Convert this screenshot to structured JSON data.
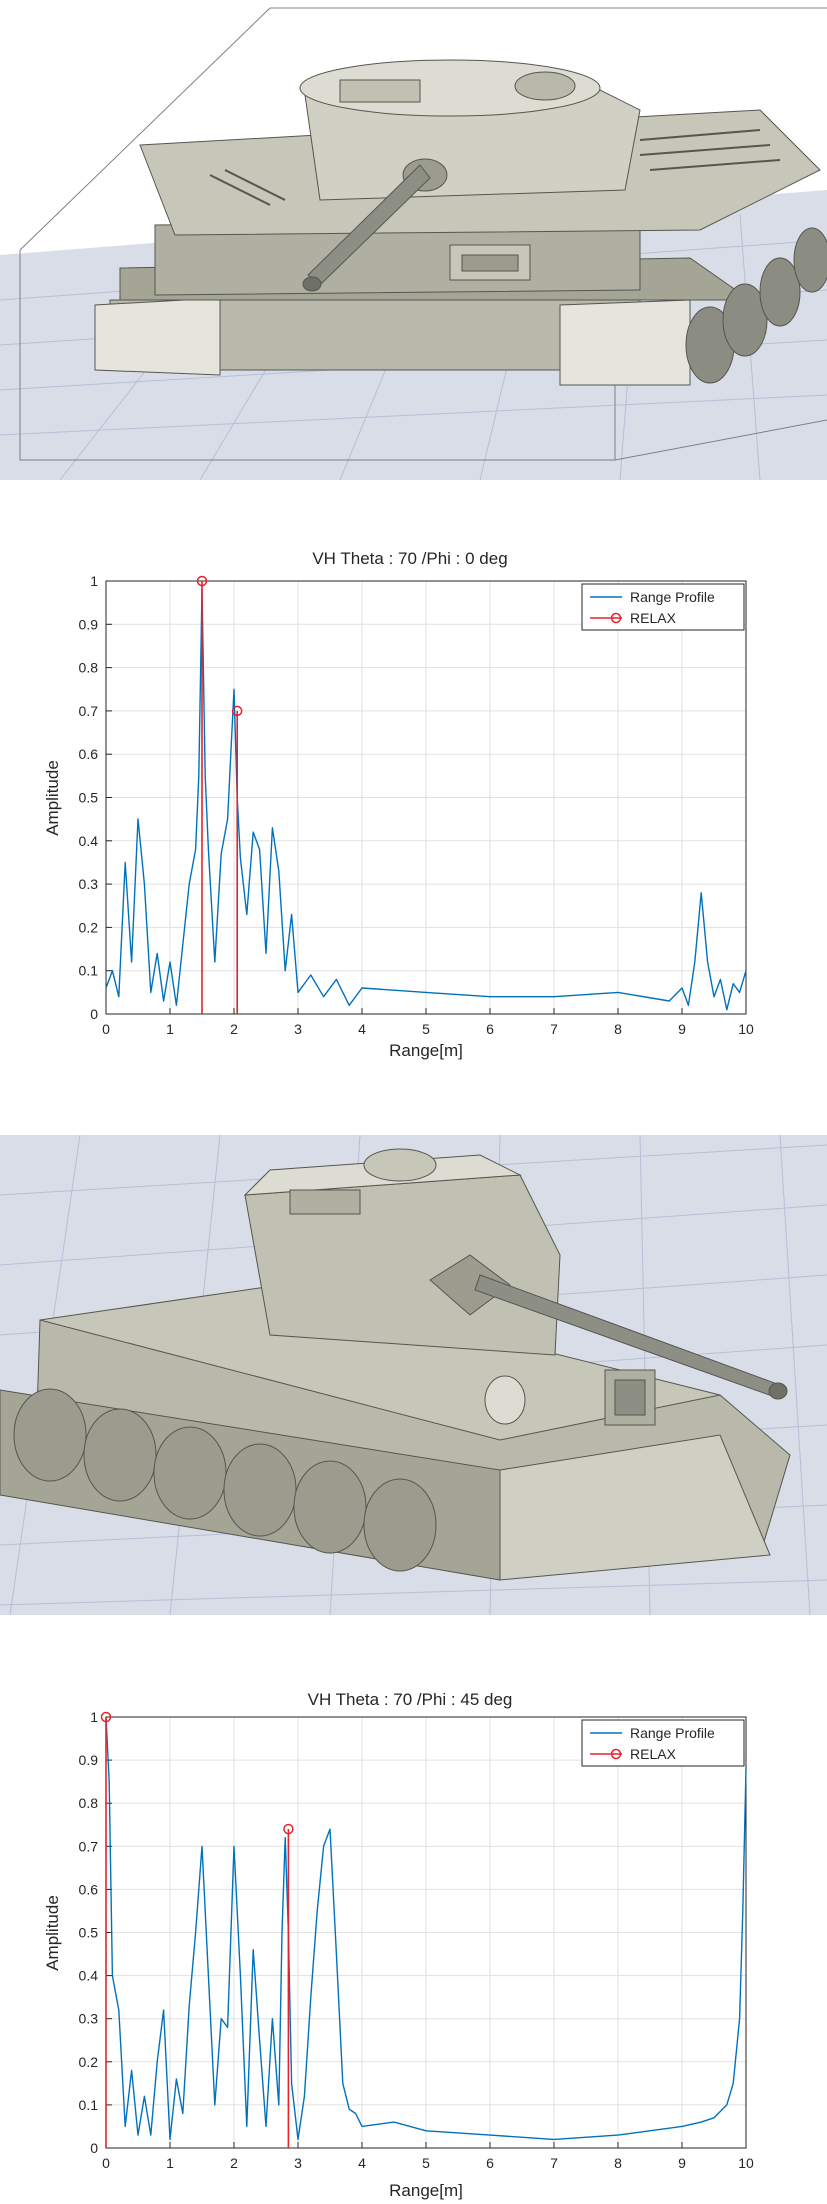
{
  "colors": {
    "range_profile": "#0072bd",
    "relax": "#e3242b",
    "grid": "#e1e1e1",
    "floor": "#d9dde8",
    "floor_line": "#b7bfd6",
    "tank_body": "#b9b9ab",
    "tank_dark": "#6f7067",
    "tank_light": "#e5e5dd"
  },
  "renders": [
    {
      "subject": "tank-3d-model",
      "view": "front-oblique"
    },
    {
      "subject": "tank-3d-model",
      "view": "side-oblique"
    }
  ],
  "chart_data": [
    {
      "type": "line",
      "title": "VH Theta : 70 /Phi : 0 deg",
      "xlabel": "Range[m]",
      "ylabel": "Amplitude",
      "xlim": [
        0,
        10
      ],
      "ylim": [
        0,
        1
      ],
      "xticks": [
        "0",
        "1",
        "2",
        "3",
        "4",
        "5",
        "6",
        "7",
        "8",
        "9",
        "10"
      ],
      "yticks": [
        "0",
        "0.1",
        "0.2",
        "0.3",
        "0.4",
        "0.5",
        "0.6",
        "0.7",
        "0.8",
        "0.9",
        "1"
      ],
      "grid": true,
      "legend_position": "top-right",
      "series": [
        {
          "name": "Range Profile",
          "style": "line",
          "x": [
            0.0,
            0.1,
            0.2,
            0.3,
            0.4,
            0.5,
            0.6,
            0.7,
            0.8,
            0.9,
            1.0,
            1.1,
            1.2,
            1.3,
            1.4,
            1.45,
            1.5,
            1.55,
            1.6,
            1.7,
            1.8,
            1.9,
            1.95,
            2.0,
            2.05,
            2.1,
            2.2,
            2.3,
            2.4,
            2.5,
            2.6,
            2.7,
            2.8,
            2.9,
            3.0,
            3.2,
            3.4,
            3.6,
            3.8,
            4.0,
            5.0,
            6.0,
            7.0,
            8.0,
            8.8,
            9.0,
            9.1,
            9.2,
            9.3,
            9.4,
            9.5,
            9.6,
            9.7,
            9.8,
            9.9,
            10.0
          ],
          "y": [
            0.06,
            0.1,
            0.04,
            0.35,
            0.12,
            0.45,
            0.3,
            0.05,
            0.14,
            0.03,
            0.12,
            0.02,
            0.16,
            0.3,
            0.38,
            0.55,
            0.98,
            0.55,
            0.38,
            0.12,
            0.37,
            0.45,
            0.6,
            0.75,
            0.5,
            0.36,
            0.23,
            0.42,
            0.38,
            0.14,
            0.43,
            0.33,
            0.1,
            0.23,
            0.05,
            0.09,
            0.04,
            0.08,
            0.02,
            0.06,
            0.05,
            0.04,
            0.04,
            0.05,
            0.03,
            0.06,
            0.02,
            0.12,
            0.28,
            0.12,
            0.04,
            0.08,
            0.01,
            0.07,
            0.05,
            0.1
          ]
        },
        {
          "name": "RELAX",
          "style": "stem",
          "x": [
            1.5,
            2.05
          ],
          "y": [
            1.0,
            0.7
          ]
        }
      ]
    },
    {
      "type": "line",
      "title": "VH Theta : 70 /Phi : 45 deg",
      "xlabel": "Range[m]",
      "ylabel": "Amplitude",
      "xlim": [
        0,
        10
      ],
      "ylim": [
        0,
        1
      ],
      "xticks": [
        "0",
        "1",
        "2",
        "3",
        "4",
        "5",
        "6",
        "7",
        "8",
        "9",
        "10"
      ],
      "yticks": [
        "0",
        "0.1",
        "0.2",
        "0.3",
        "0.4",
        "0.5",
        "0.6",
        "0.7",
        "0.8",
        "0.9",
        "1"
      ],
      "grid": true,
      "legend_position": "top-right",
      "series": [
        {
          "name": "Range Profile",
          "style": "line",
          "x": [
            0.0,
            0.05,
            0.1,
            0.2,
            0.3,
            0.4,
            0.5,
            0.6,
            0.7,
            0.8,
            0.9,
            1.0,
            1.1,
            1.2,
            1.3,
            1.4,
            1.5,
            1.6,
            1.7,
            1.8,
            1.9,
            2.0,
            2.1,
            2.2,
            2.3,
            2.4,
            2.5,
            2.6,
            2.7,
            2.75,
            2.8,
            2.85,
            2.9,
            3.0,
            3.1,
            3.2,
            3.3,
            3.4,
            3.5,
            3.6,
            3.7,
            3.8,
            3.9,
            4.0,
            4.5,
            5.0,
            6.0,
            7.0,
            8.0,
            9.0,
            9.3,
            9.5,
            9.7,
            9.8,
            9.9,
            9.95,
            10.0
          ],
          "y": [
            1.0,
            0.85,
            0.4,
            0.32,
            0.05,
            0.18,
            0.03,
            0.12,
            0.03,
            0.2,
            0.32,
            0.02,
            0.16,
            0.08,
            0.33,
            0.5,
            0.7,
            0.4,
            0.1,
            0.3,
            0.28,
            0.7,
            0.4,
            0.05,
            0.46,
            0.25,
            0.05,
            0.3,
            0.1,
            0.5,
            0.72,
            0.5,
            0.15,
            0.02,
            0.12,
            0.35,
            0.55,
            0.7,
            0.74,
            0.45,
            0.15,
            0.09,
            0.08,
            0.05,
            0.06,
            0.04,
            0.03,
            0.02,
            0.03,
            0.05,
            0.06,
            0.07,
            0.1,
            0.15,
            0.3,
            0.55,
            0.88
          ]
        },
        {
          "name": "RELAX",
          "style": "stem",
          "x": [
            0.0,
            2.85
          ],
          "y": [
            1.0,
            0.74
          ]
        }
      ]
    }
  ]
}
